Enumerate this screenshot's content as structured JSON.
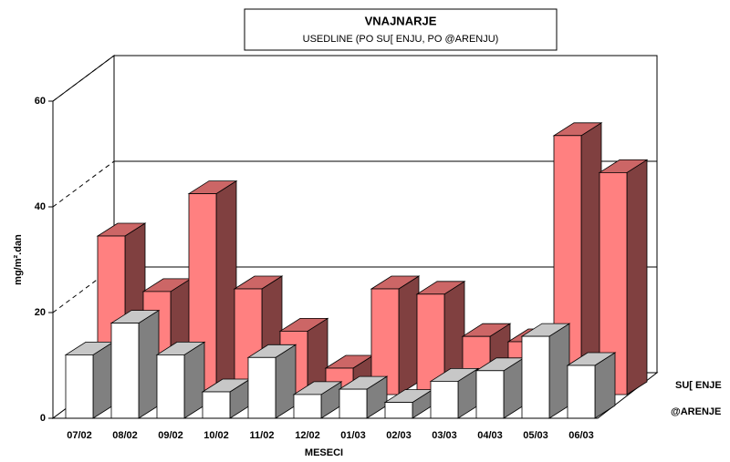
{
  "chart_data": {
    "type": "bar",
    "title": "VNAJNARJE",
    "subtitle": "USEDLINE (PO SU[ ENJU, PO @ARENJU)",
    "x_label": "MESECI",
    "y_label": "mg/m².dan",
    "categories": [
      "07/02",
      "08/02",
      "09/02",
      "10/02",
      "11/02",
      "12/02",
      "01/03",
      "02/03",
      "03/03",
      "04/03",
      "05/03",
      "06/03"
    ],
    "series": [
      {
        "name": "SU[ ENJE",
        "color": "#ff8080",
        "values": [
          30,
          19.5,
          38,
          20,
          12,
          5,
          20,
          19,
          11,
          10,
          49,
          42
        ]
      },
      {
        "name": "@ARENJE",
        "color": "#ffffff",
        "values": [
          12,
          18,
          12,
          5,
          11.5,
          4.5,
          5.5,
          3,
          7,
          9,
          15.5,
          10
        ]
      }
    ],
    "ylim": [
      0,
      60
    ],
    "yticks": [
      0,
      20,
      40,
      60
    ],
    "grid": true
  }
}
